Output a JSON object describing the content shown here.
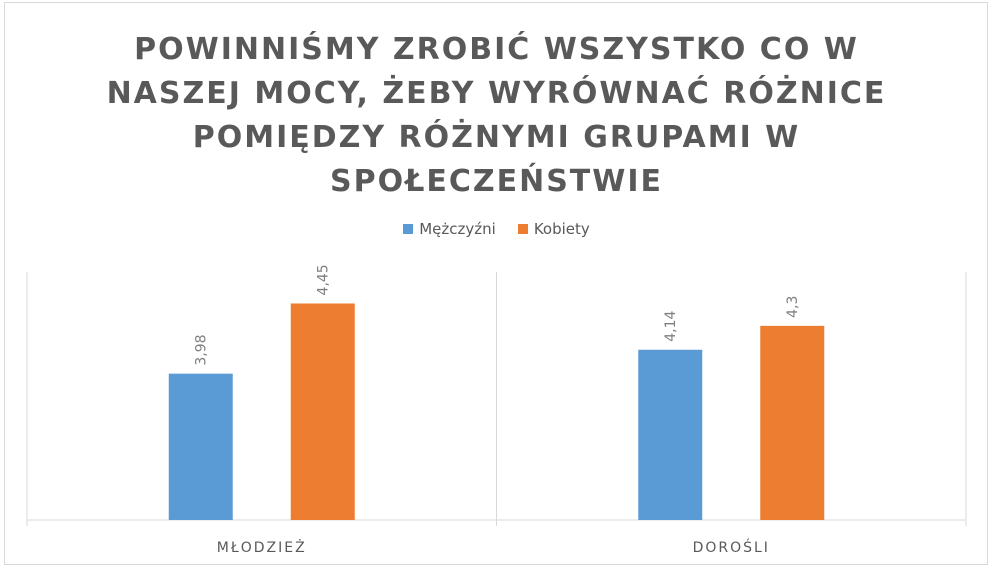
{
  "chart_data": {
    "type": "bar",
    "title_lines": [
      "POWINNIŚMY ZROBIĆ WSZYSTKO CO W",
      "NASZEJ MOCY, ŻEBY WYRÓWNAĆ RÓŻNICE",
      "POMIĘDZY RÓŻNYMI GRUPAMI W",
      "SPOŁECZEŃSTWIE"
    ],
    "categories": [
      "MŁODZIEŻ",
      "DOROŚLI"
    ],
    "series": [
      {
        "name": "Mężczyźni",
        "values": [
          3.98,
          4.14
        ],
        "labels": [
          "3,98",
          "4,14"
        ],
        "color": "#5b9bd5"
      },
      {
        "name": "Kobiety",
        "values": [
          4.45,
          4.3
        ],
        "labels": [
          "4,45",
          "4,3"
        ],
        "color": "#ed7d31"
      }
    ],
    "ylim": [
      3.0,
      4.5
    ],
    "legend_position": "top",
    "grid": false,
    "category_separators": true
  }
}
